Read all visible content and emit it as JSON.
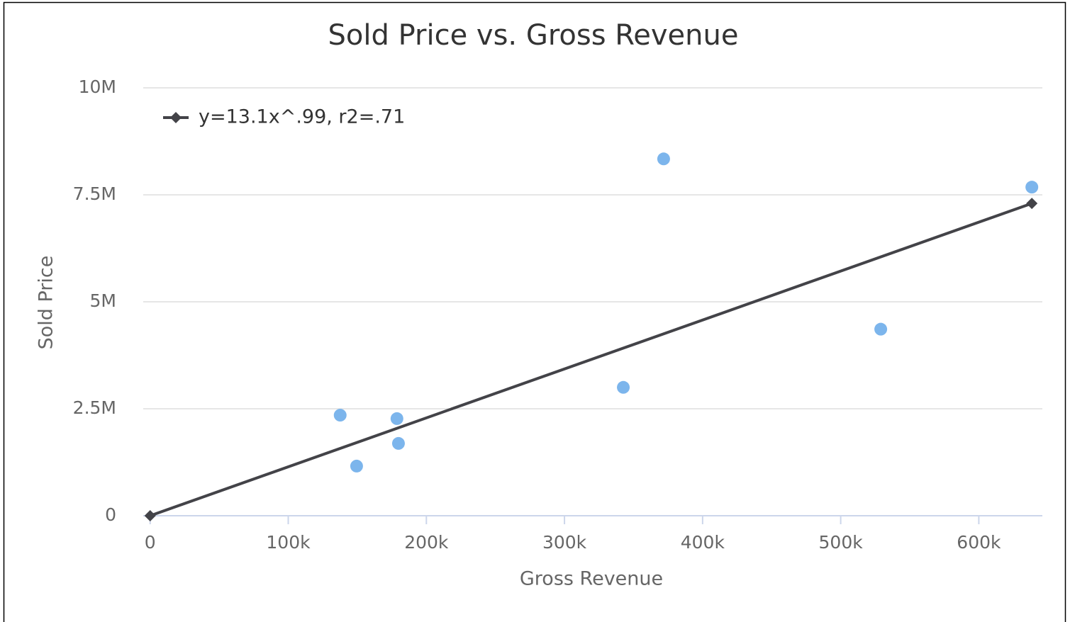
{
  "chart_data": {
    "type": "scatter",
    "title": "Sold Price vs. Gross Revenue",
    "x_label": "Gross Revenue",
    "y_label": "Sold Price",
    "series": [
      {
        "type": "scatter",
        "color": "#7cb5ec",
        "x": [
          137600,
          149500,
          178700,
          179800,
          342600,
          371800,
          529000,
          638400
        ],
        "values": [
          2350000,
          1160000,
          2270000,
          1690000,
          3000000,
          8340000,
          4360000,
          7680000
        ]
      },
      {
        "type": "line",
        "name": "y=13.1x^.99, r2=.71",
        "color": "#434348",
        "x": [
          0,
          638400
        ],
        "values": [
          0,
          7300000
        ]
      }
    ],
    "xlim": [
      -5000,
      646000
    ],
    "xticks": [
      0,
      {
        "value": 100000,
        "label": "100k"
      },
      {
        "value": 200000,
        "label": "200k"
      },
      {
        "value": 300000,
        "label": "300k"
      },
      {
        "value": 400000,
        "label": "400k"
      },
      {
        "value": 500000,
        "label": "500k"
      },
      {
        "value": 600000,
        "label": "600k"
      }
    ],
    "ylim": [
      0,
      10000000
    ],
    "yticks": [
      0,
      {
        "value": 2500000,
        "label": "2.5M"
      },
      {
        "value": 5000000,
        "label": "5M"
      },
      {
        "value": 7500000,
        "label": "7.5M"
      },
      {
        "value": 10000000,
        "label": "10M"
      }
    ],
    "grid": true,
    "legend_position": "top-left"
  }
}
